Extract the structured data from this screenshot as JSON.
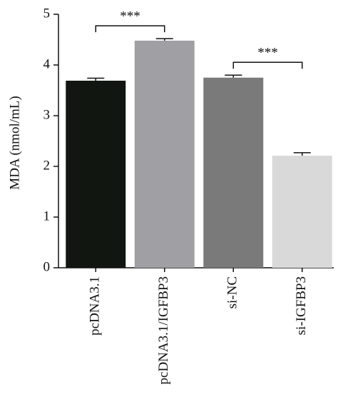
{
  "chart_data": {
    "type": "bar",
    "y_label": "MDA (nmol/mL)",
    "categories": [
      "pcDNA3.1",
      "pcDNA3.1/IGFBP3",
      "si-NC",
      "si-IGFBP3"
    ],
    "values": [
      3.69,
      4.48,
      3.75,
      2.21
    ],
    "errors": [
      0.05,
      0.04,
      0.05,
      0.06
    ],
    "colors": [
      "#111611",
      "#a0a0a4",
      "#7a7a7a",
      "#d9d9d9"
    ],
    "ylim": [
      0,
      5
    ],
    "yticks": [
      0,
      1,
      2,
      3,
      4,
      5
    ],
    "annotations": [
      {
        "label": "***",
        "from": 0,
        "to": 1
      },
      {
        "label": "***",
        "from": 2,
        "to": 3
      }
    ]
  }
}
